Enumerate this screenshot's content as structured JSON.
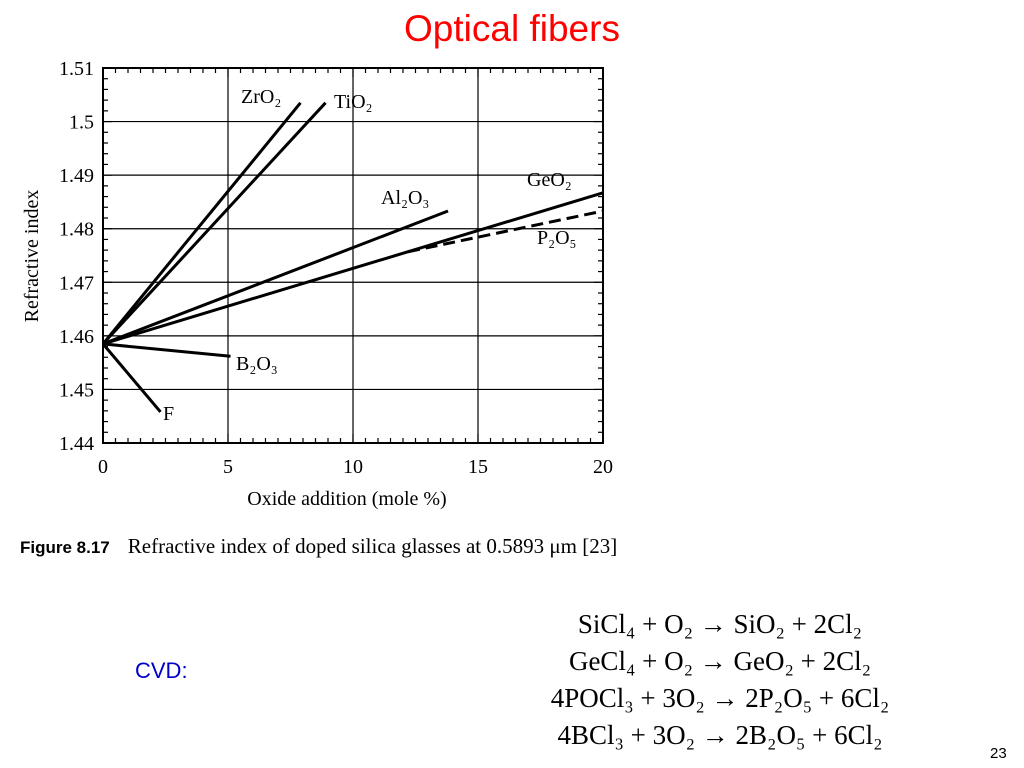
{
  "slide": {
    "title": "Optical fibers",
    "title_color": "#ff0000",
    "cvd_label": "CVD:",
    "cvd_color": "#0000cc",
    "page_number": "23"
  },
  "caption": {
    "figure_label": "Figure 8.17",
    "text": "Refractive index of doped silica glasses at 0.5893 μm [23]"
  },
  "equations": [
    "SiCl₄ + O₂ → SiO₂ + 2Cl₂",
    "GeCl₄ + O₂ → GeO₂ + 2Cl₂",
    "4POCl₃ + 3O₂ → 2P₂O₅ + 6Cl₂",
    "4BCl₃ + 3O₂ → 2B₂O₅ + 6Cl₂"
  ],
  "chart_data": {
    "type": "line",
    "title": "",
    "xlabel": "Oxide addition (mole %)",
    "ylabel": "Refractive index",
    "xlim": [
      0,
      20
    ],
    "ylim": [
      1.44,
      1.51
    ],
    "xticks": [
      0,
      5,
      10,
      15,
      20
    ],
    "yticks": [
      1.44,
      1.45,
      1.46,
      1.47,
      1.48,
      1.49,
      1.5,
      1.51
    ],
    "xtick_labels": [
      "0",
      "5",
      "10",
      "15",
      "20"
    ],
    "ytick_labels": [
      "1.44",
      "1.45",
      "1.46",
      "1.47",
      "1.48",
      "1.49",
      "1.5",
      "1.51"
    ],
    "grid": true,
    "series": [
      {
        "name": "ZrO₂",
        "style": "solid",
        "x": [
          0,
          7.9
        ],
        "y": [
          1.4585,
          1.5035
        ]
      },
      {
        "name": "TiO₂",
        "style": "solid",
        "x": [
          0,
          8.9
        ],
        "y": [
          1.4585,
          1.5035
        ]
      },
      {
        "name": "Al₂O₃",
        "style": "solid",
        "x": [
          0,
          13.8
        ],
        "y": [
          1.4585,
          1.4833
        ]
      },
      {
        "name": "GeO₂",
        "style": "solid",
        "x": [
          0,
          20
        ],
        "y": [
          1.4585,
          1.4867
        ]
      },
      {
        "name": "P₂O₅",
        "style": "dashed",
        "x": [
          12.2,
          20
        ],
        "y": [
          1.4757,
          1.4833
        ]
      },
      {
        "name": "B₂O₃",
        "style": "solid",
        "x": [
          0,
          5.1
        ],
        "y": [
          1.4585,
          1.4562
        ]
      },
      {
        "name": "F",
        "style": "solid",
        "x": [
          0,
          2.3
        ],
        "y": [
          1.4585,
          1.4458
        ]
      }
    ]
  }
}
